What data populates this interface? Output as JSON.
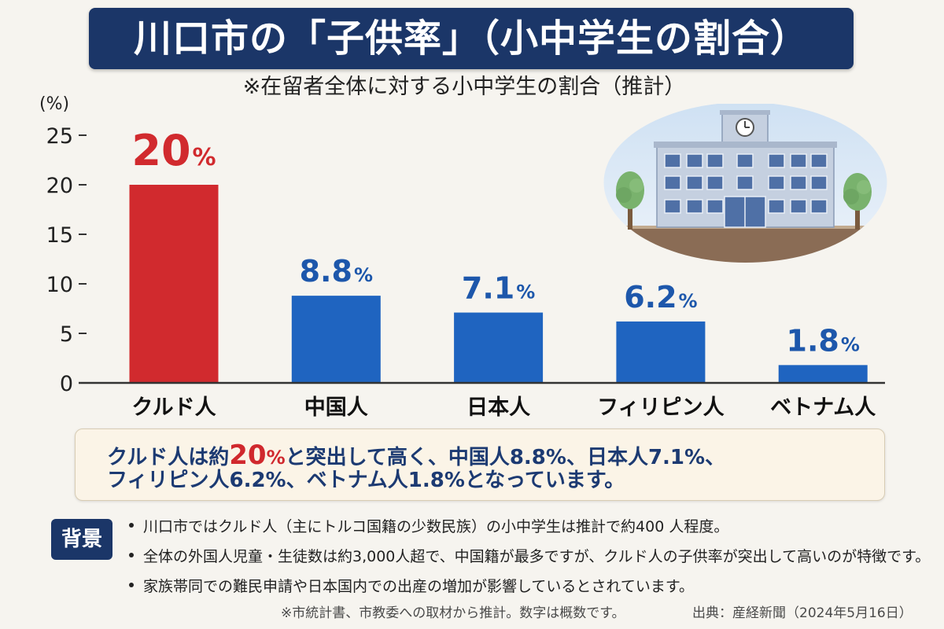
{
  "colors": {
    "title_bg": "#1b3668",
    "highlight": "#d0282d",
    "summary_text": "#1c3a72",
    "summary_bg": "#fbf4e7",
    "summary_border": "#d8ccb4",
    "badge_bg": "#1b3668",
    "page_bg": "#f6f4ef"
  },
  "chart_data": {
    "type": "bar",
    "title": "川口市の「子供率」（小中学生の割合）",
    "subtitle": "※在留者全体に対する小中学生の割合（推計）",
    "ylabel": "(%)",
    "ylim": [
      0,
      25
    ],
    "yticks": [
      0,
      5,
      10,
      15,
      20,
      25
    ],
    "categories": [
      "クルド人",
      "中国人",
      "日本人",
      "フィリピン人",
      "ベトナム人"
    ],
    "values": [
      20,
      8.8,
      7.1,
      6.2,
      1.8
    ],
    "value_unit": "%",
    "bar_colors": [
      "#d12a2e",
      "#1f64c0",
      "#1f64c0",
      "#1f64c0",
      "#1f64c0"
    ],
    "label_colors": [
      "#d12a2e",
      "#1d57ab",
      "#1d57ab",
      "#1d57ab",
      "#1d57ab"
    ],
    "grid": false
  },
  "illustration": {
    "icon": "school-building-icon"
  },
  "summary": {
    "line1_pre": "クルド人は約",
    "highlight_value": "20",
    "highlight_unit": "%",
    "line1_post": "と突出して高く、中国人8.8%、日本人7.1%、",
    "line2": "フィリピン人6.2%、ベトナム人1.8%となっています。"
  },
  "background": {
    "label": "背景",
    "bullets": [
      "川口市ではクルド人（主にトルコ国籍の少数民族）の小中学生は推計で約400 人程度。",
      "全体の外国人児童・生徒数は約3,000人超で、中国籍が最多ですが、クルド人の子供率が突出して高いのが特徴です。",
      "家族帯同での難民申請や日本国内での出産の増加が影響しているとされています。"
    ]
  },
  "footer": {
    "note": "※市統計書、市教委への取材から推計。数字は概数です。",
    "source": "出典：産経新聞（2024年5月16日）"
  }
}
